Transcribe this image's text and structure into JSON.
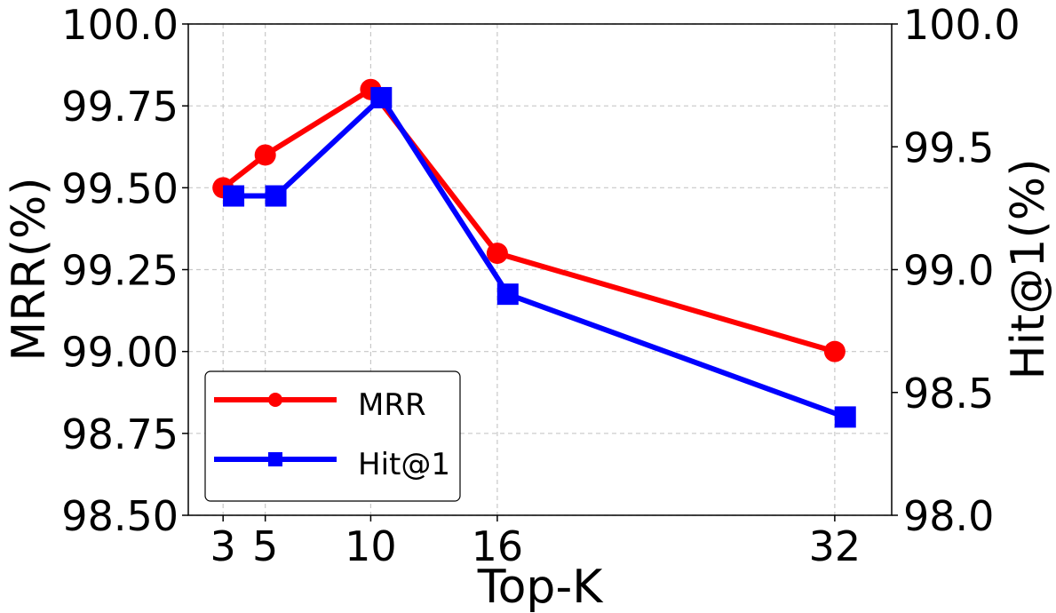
{
  "chart_data": {
    "type": "line",
    "x": [
      3,
      5,
      10,
      16,
      32
    ],
    "xticks": [
      "3",
      "5",
      "10",
      "16",
      "32"
    ],
    "xlabel": "Top-K",
    "ylabel_left": "MRR(%)",
    "ylabel_right": "Hit@1(%)",
    "ylim_left": [
      98.5,
      100.0
    ],
    "ylim_right": [
      98.0,
      100.0
    ],
    "yticks_left": [
      "98.50",
      "98.75",
      "99.00",
      "99.25",
      "99.50",
      "99.75",
      "100.0"
    ],
    "yticks_right": [
      "98.0",
      "98.5",
      "99.0",
      "99.5",
      "100.0"
    ],
    "grid": true,
    "legend_position": "lower-left",
    "series": [
      {
        "name": "MRR",
        "axis": "left",
        "marker": "circle",
        "color": "#ff0000",
        "x": [
          3,
          5,
          10,
          16,
          32
        ],
        "values": [
          99.5,
          99.6,
          99.8,
          99.3,
          99.0
        ]
      },
      {
        "name": "Hit@1",
        "axis": "right",
        "marker": "square",
        "color": "#0000ff",
        "x": [
          3.5,
          5.5,
          10.5,
          16.5,
          32.5
        ],
        "values": [
          99.3,
          99.3,
          99.7,
          98.9,
          98.4
        ]
      }
    ]
  }
}
